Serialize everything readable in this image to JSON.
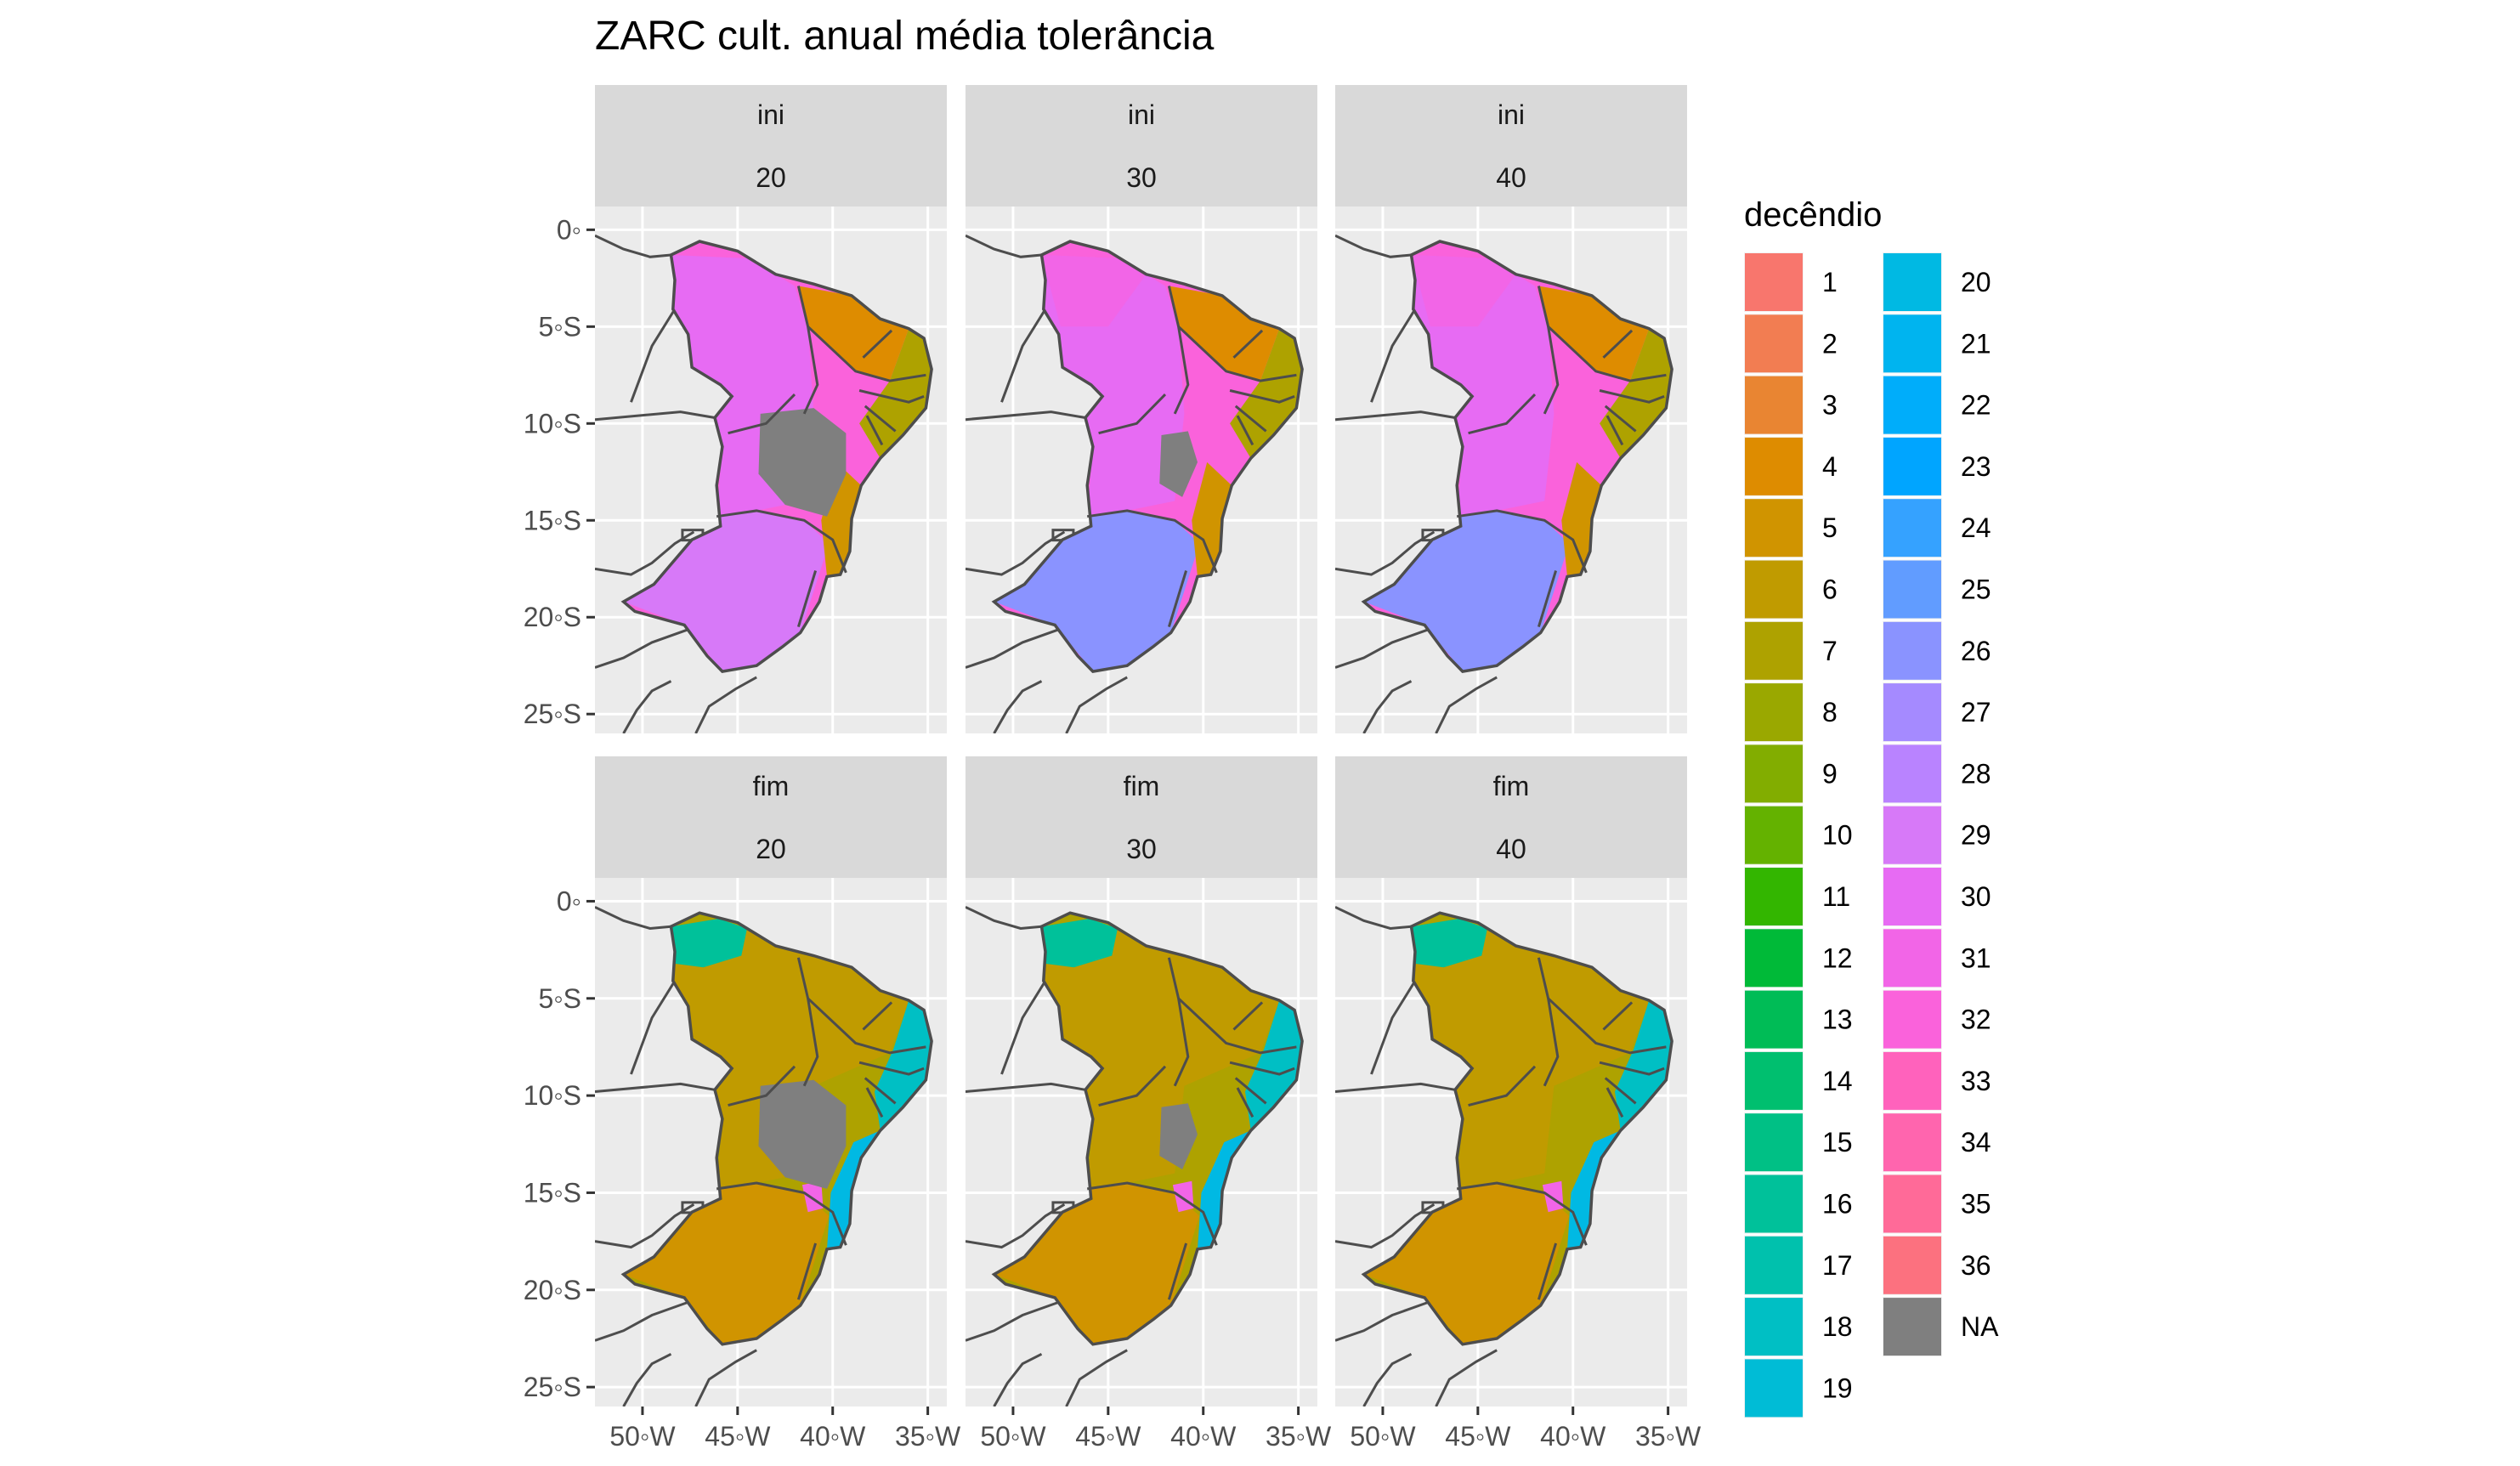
{
  "chart_data": {
    "type": "map",
    "title": "ZARC cult. anual média tolerância",
    "facet_rows": [
      "ini",
      "fim"
    ],
    "facet_cols": [
      "20",
      "30",
      "40"
    ],
    "panels": [
      {
        "row": "ini",
        "col": "20",
        "dominant_decendios": [
          29,
          30,
          32,
          4,
          5,
          9
        ],
        "na_region": "large (interior Bahia)"
      },
      {
        "row": "ini",
        "col": "30",
        "dominant_decendios": [
          29,
          30,
          32,
          26,
          4,
          8
        ],
        "na_region": "small (interior Bahia)"
      },
      {
        "row": "ini",
        "col": "40",
        "dominant_decendios": [
          29,
          30,
          32,
          26,
          4,
          8
        ],
        "na_region": "none"
      },
      {
        "row": "fim",
        "col": "20",
        "dominant_decendios": [
          5,
          6,
          7,
          18,
          20,
          31
        ],
        "na_region": "large (interior Bahia)"
      },
      {
        "row": "fim",
        "col": "30",
        "dominant_decendios": [
          5,
          6,
          7,
          18,
          20,
          31
        ],
        "na_region": "small (interior Bahia)"
      },
      {
        "row": "fim",
        "col": "40",
        "dominant_decendios": [
          5,
          6,
          7,
          18,
          20,
          31
        ],
        "na_region": "none"
      }
    ],
    "x_axis": {
      "ticks": [
        "50◦W",
        "45◦W",
        "40◦W",
        "35◦W"
      ],
      "values": [
        -50,
        -45,
        -40,
        -35
      ],
      "range": [
        -52.5,
        -34
      ]
    },
    "y_axis": {
      "ticks": [
        "0◦",
        "5◦S",
        "10◦S",
        "15◦S",
        "20◦S",
        "25◦S"
      ],
      "values": [
        0,
        -5,
        -10,
        -15,
        -20,
        -25
      ],
      "range": [
        -26,
        1.2
      ]
    },
    "grid": true,
    "legend": {
      "title": "decêndio",
      "placement": "right",
      "items": [
        {
          "label": "1",
          "color": "#F8766D"
        },
        {
          "label": "2",
          "color": "#F27D52"
        },
        {
          "label": "3",
          "color": "#E98532"
        },
        {
          "label": "4",
          "color": "#DE8C00"
        },
        {
          "label": "5",
          "color": "#D09400"
        },
        {
          "label": "6",
          "color": "#C09B00"
        },
        {
          "label": "7",
          "color": "#AEA200"
        },
        {
          "label": "8",
          "color": "#9AA800"
        },
        {
          "label": "9",
          "color": "#82AD00"
        },
        {
          "label": "10",
          "color": "#64B200"
        },
        {
          "label": "11",
          "color": "#33B600"
        },
        {
          "label": "12",
          "color": "#00BA38"
        },
        {
          "label": "13",
          "color": "#00BC56"
        },
        {
          "label": "14",
          "color": "#00BF6F"
        },
        {
          "label": "15",
          "color": "#00C085"
        },
        {
          "label": "16",
          "color": "#00C19A"
        },
        {
          "label": "17",
          "color": "#00C1AD"
        },
        {
          "label": "18",
          "color": "#00BFC4"
        },
        {
          "label": "19",
          "color": "#00BCD6"
        },
        {
          "label": "20",
          "color": "#00B9E3"
        },
        {
          "label": "21",
          "color": "#00B4EF"
        },
        {
          "label": "22",
          "color": "#00ADFA"
        },
        {
          "label": "23",
          "color": "#00A5FF"
        },
        {
          "label": "24",
          "color": "#35A2FF"
        },
        {
          "label": "25",
          "color": "#619CFF"
        },
        {
          "label": "26",
          "color": "#8A93FF"
        },
        {
          "label": "27",
          "color": "#A58AFF"
        },
        {
          "label": "28",
          "color": "#B983FF"
        },
        {
          "label": "29",
          "color": "#D779F8"
        },
        {
          "label": "30",
          "color": "#E76BF3"
        },
        {
          "label": "31",
          "color": "#F265E7"
        },
        {
          "label": "32",
          "color": "#FA62DB"
        },
        {
          "label": "33",
          "color": "#FF62BC"
        },
        {
          "label": "34",
          "color": "#FF65AE"
        },
        {
          "label": "35",
          "color": "#FF6A98"
        },
        {
          "label": "36",
          "color": "#FC717F"
        },
        {
          "label": "NA",
          "color": "#7F7F7F"
        }
      ]
    }
  }
}
